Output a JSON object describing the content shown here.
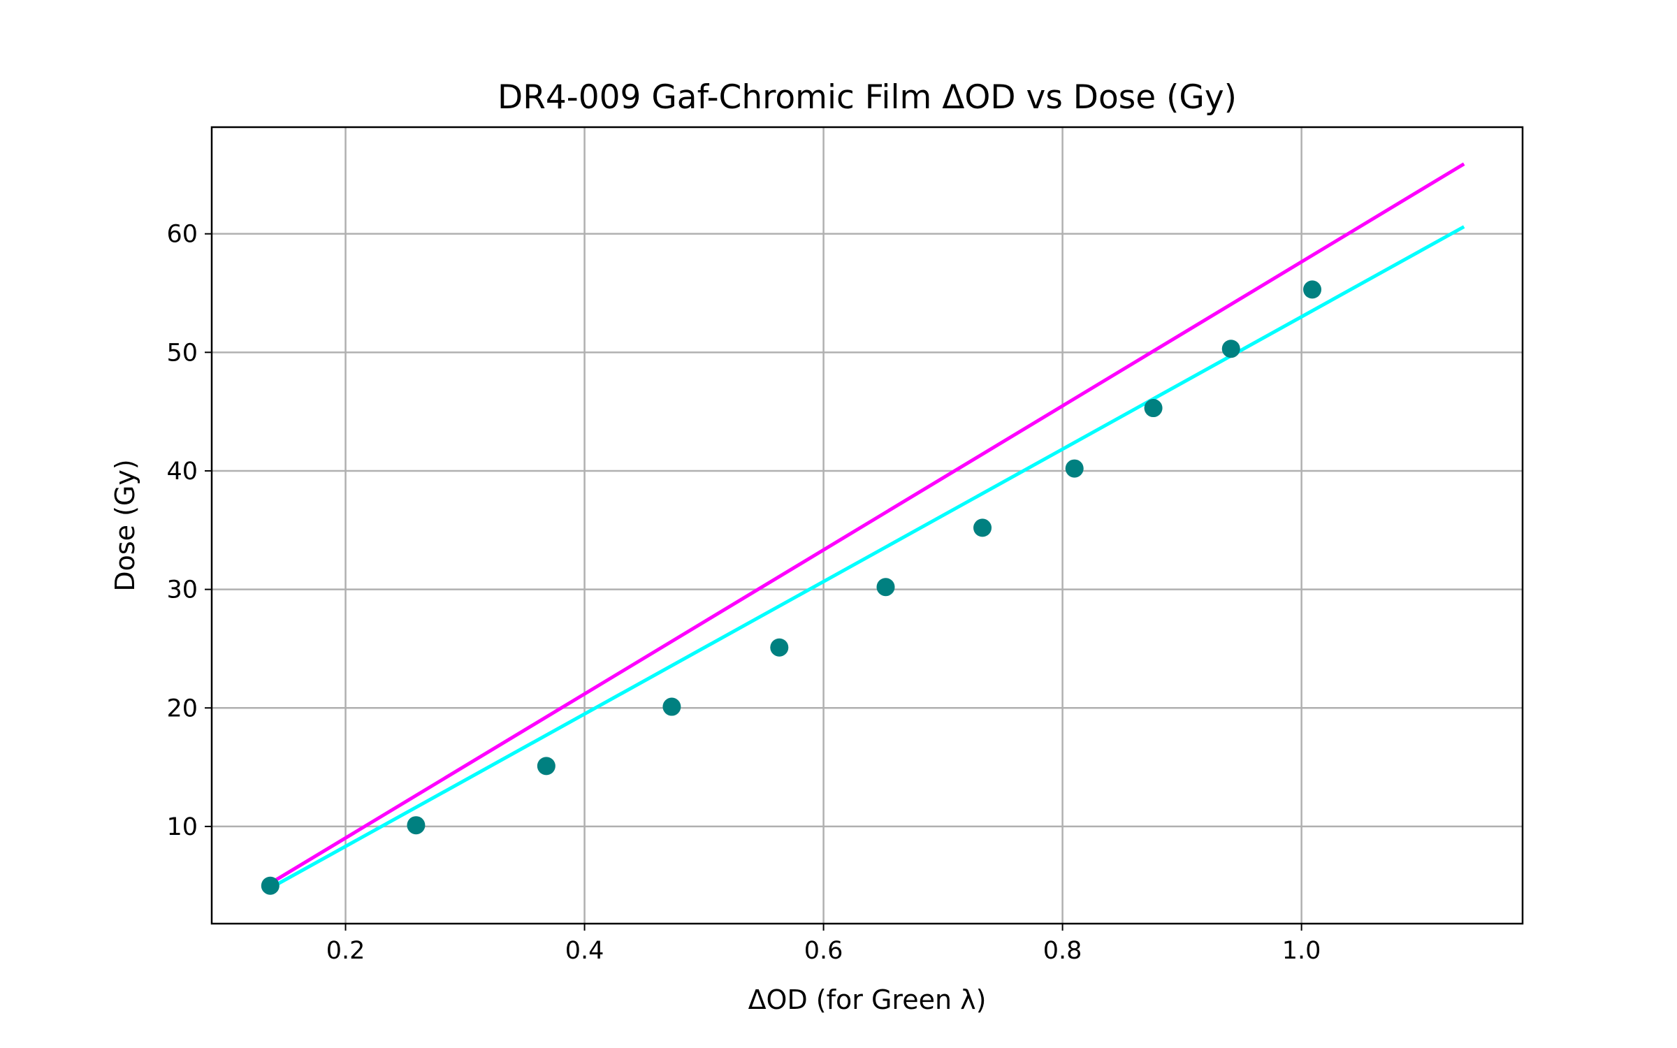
{
  "chart_data": {
    "type": "scatter",
    "title": "DR4-009 Gaf-Chromic Film ΔOD vs Dose (Gy)",
    "xlabel": "ΔOD (for Green λ)",
    "ylabel": "Dose (Gy)",
    "xlim": [
      0.088,
      1.185
    ],
    "ylim": [
      1.8,
      69.0
    ],
    "grid": true,
    "xticks": [
      {
        "value": 0.2,
        "label": "0.2"
      },
      {
        "value": 0.4,
        "label": "0.4"
      },
      {
        "value": 0.6,
        "label": "0.6"
      },
      {
        "value": 0.8,
        "label": "0.8"
      },
      {
        "value": 1.0,
        "label": "1.0"
      }
    ],
    "yticks": [
      {
        "value": 10,
        "label": "10"
      },
      {
        "value": 20,
        "label": "20"
      },
      {
        "value": 30,
        "label": "30"
      },
      {
        "value": 40,
        "label": "40"
      },
      {
        "value": 50,
        "label": "50"
      },
      {
        "value": 60,
        "label": "60"
      }
    ],
    "series": [
      {
        "kind": "points",
        "color": "#008080",
        "x": [
          0.137,
          0.259,
          0.368,
          0.473,
          0.563,
          0.652,
          0.733,
          0.81,
          0.876,
          0.941,
          1.009
        ],
        "y": [
          5.0,
          10.1,
          15.1,
          20.1,
          25.1,
          30.2,
          35.2,
          40.2,
          45.3,
          50.3,
          55.3
        ]
      },
      {
        "kind": "line",
        "color": "#ff00ff",
        "x": [
          0.137,
          1.136
        ],
        "y": [
          5.2,
          65.9
        ]
      },
      {
        "kind": "line",
        "color": "#00ffff",
        "x": [
          0.137,
          1.136
        ],
        "y": [
          4.8,
          60.6
        ]
      }
    ]
  }
}
